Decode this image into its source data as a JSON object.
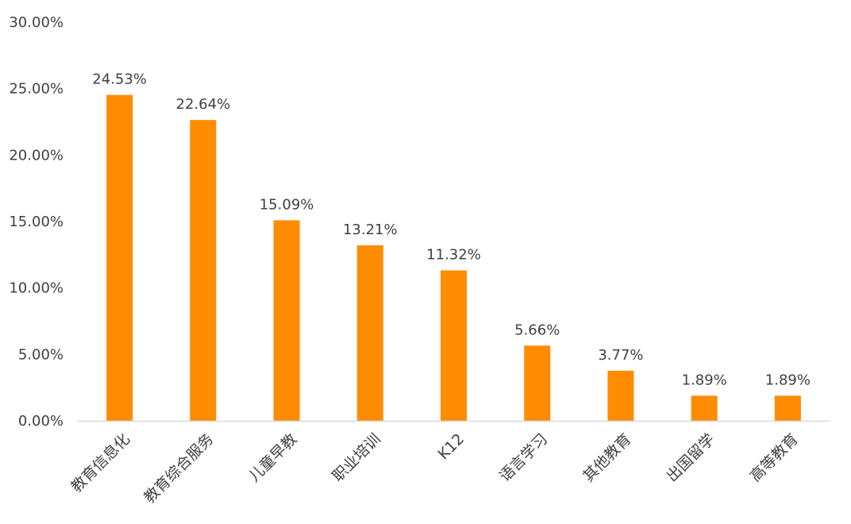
{
  "chart_data": {
    "type": "bar",
    "categories": [
      "教育信息化",
      "教育综合服务",
      "儿童早教",
      "职业培训",
      "K12",
      "语言学习",
      "其他教育",
      "出国留学",
      "高等教育"
    ],
    "values": [
      24.53,
      22.64,
      15.09,
      13.21,
      11.32,
      5.66,
      3.77,
      1.89,
      1.89
    ],
    "data_labels": [
      "24.53%",
      "22.64%",
      "15.09%",
      "13.21%",
      "11.32%",
      "5.66%",
      "3.77%",
      "1.89%",
      "1.89%"
    ],
    "y_ticks": [
      0,
      5,
      10,
      15,
      20,
      25,
      30
    ],
    "y_tick_labels": [
      "0.00%",
      "5.00%",
      "10.00%",
      "15.00%",
      "20.00%",
      "25.00%",
      "30.00%"
    ],
    "ylim": [
      0,
      30
    ],
    "grid": false,
    "legend": "none",
    "bar_color": "#FF8C00",
    "axis_color": "#D9D9D9",
    "text_color": "#404040"
  }
}
